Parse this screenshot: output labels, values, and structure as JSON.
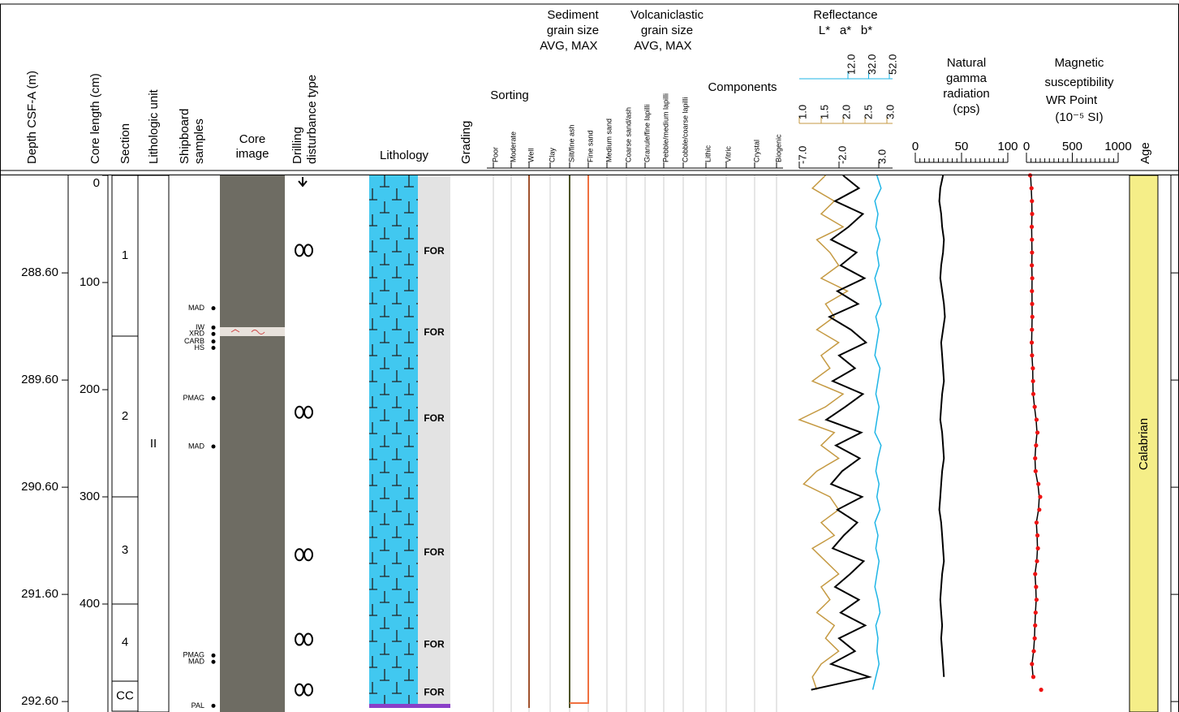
{
  "header": {
    "depth": "Depth CSF-A (m)",
    "core_length": "Core length (cm)",
    "section": "Section",
    "lith_unit": "Lithologic unit",
    "samples": [
      "Shipboard",
      "samples"
    ],
    "core_image": [
      "Core",
      "image"
    ],
    "disturbance": [
      "Drilling",
      "disturbance type"
    ],
    "lithology": "Lithology",
    "grading": "Grading",
    "sorting": "Sorting",
    "sorting_classes": [
      "Poor",
      "Moderate",
      "Well"
    ],
    "sediment_grain": {
      "title": [
        "Sediment",
        "grain size"
      ],
      "avg": "AVG,",
      "max": "MAX"
    },
    "volcaniclastic_grain": {
      "title": [
        "Volcaniclastic",
        "grain size"
      ],
      "avg": "AVG,",
      "max": "MAX"
    },
    "grain_classes": [
      "Clay",
      "Silt/fine ash",
      "Fine sand",
      "Medium sand",
      "Coarse sand/ash",
      "Granule/fine lapilli",
      "Pebble/medium lapilli",
      "Cobble/coarse lapilli"
    ],
    "components": "Components",
    "component_classes": [
      "Lithic",
      "Vitric",
      "Crystal",
      "Biogenic"
    ],
    "reflectance": "Reflectance",
    "ngr": [
      "Natural",
      "gamma",
      "radiation",
      "(cps)"
    ],
    "ms": [
      "Magnetic",
      "susceptibility"
    ],
    "ms_wr": "WR",
    "ms_point": "Point",
    "ms_unit": "(10⁻⁵ SI)",
    "age": "Age"
  },
  "depth_ticks": [
    {
      "value": 288.6,
      "label": "288.60"
    },
    {
      "value": 289.6,
      "label": "289.60"
    },
    {
      "value": 290.6,
      "label": "290.60"
    },
    {
      "value": 291.6,
      "label": "291.60"
    },
    {
      "value": 292.6,
      "label": "292.60"
    }
  ],
  "core_length_ticks": [
    0,
    100,
    200,
    300,
    400
  ],
  "sections": [
    {
      "label": "1",
      "top": 0,
      "bottom": 150
    },
    {
      "label": "2",
      "top": 150,
      "bottom": 300
    },
    {
      "label": "3",
      "top": 300,
      "bottom": 400
    },
    {
      "label": "4",
      "top": 400,
      "bottom": 472
    },
    {
      "label": "CC",
      "top": 472,
      "bottom": 500
    }
  ],
  "lith_unit": "II",
  "samples": [
    {
      "label": "MAD",
      "cm": 124
    },
    {
      "label": "IW",
      "cm": 142
    },
    {
      "label": "XRD",
      "cm": 148
    },
    {
      "label": "CARB",
      "cm": 155
    },
    {
      "label": "HS",
      "cm": 161
    },
    {
      "label": "PMAG",
      "cm": 208
    },
    {
      "label": "MAD",
      "cm": 253
    },
    {
      "label": "PMAG",
      "cm": 448
    },
    {
      "label": "MAD",
      "cm": 454
    },
    {
      "label": "PAL",
      "cm": 495
    }
  ],
  "disturbance_cm": [
    70,
    221,
    354,
    433,
    480
  ],
  "lithology_labels": [
    {
      "label": "FOR",
      "cm": 71
    },
    {
      "label": "FOR",
      "cm": 147
    },
    {
      "label": "FOR",
      "cm": 227
    },
    {
      "label": "FOR",
      "cm": 352
    },
    {
      "label": "FOR",
      "cm": 438
    },
    {
      "label": "FOR",
      "cm": 483
    }
  ],
  "reflectance": {
    "L": {
      "name": "L*",
      "color": "#1fb5e6",
      "lim": [
        12,
        52
      ],
      "ticks": [
        {
          "value": 12,
          "label": "12.0"
        },
        {
          "value": 32,
          "label": "32.0"
        },
        {
          "value": 52,
          "label": "52.0"
        }
      ],
      "values": [
        40,
        44,
        38,
        41,
        39,
        43,
        40,
        42,
        38,
        41,
        44,
        39,
        42,
        40,
        38,
        43,
        41,
        39,
        42,
        40,
        38,
        44,
        41,
        39,
        42,
        40,
        43,
        38,
        41,
        39,
        42,
        40,
        38,
        41,
        43,
        39,
        41,
        40,
        42,
        39,
        36
      ]
    },
    "a": {
      "name": "a*",
      "color": "#c59a43",
      "lim": [
        1,
        3
      ],
      "ticks": [
        {
          "value": 1,
          "label": "1.0"
        },
        {
          "value": 1.5,
          "label": "1.5"
        },
        {
          "value": 2,
          "label": "2.0"
        },
        {
          "value": 2.5,
          "label": "2.5"
        },
        {
          "value": 3,
          "label": "3.0"
        }
      ],
      "values": [
        1.6,
        1.3,
        1.8,
        1.5,
        2.0,
        1.4,
        1.7,
        1.9,
        1.5,
        2.1,
        1.6,
        1.8,
        1.4,
        1.9,
        1.5,
        1.7,
        1.3,
        2.0,
        1.6,
        1.0,
        1.8,
        1.5,
        1.9,
        1.4,
        1.1,
        1.7,
        1.9,
        1.5,
        1.8,
        1.3,
        1.6,
        1.9,
        1.5,
        1.7,
        1.4,
        1.8,
        1.6,
        1.9,
        1.5,
        1.3,
        1.4
      ]
    },
    "b": {
      "name": "b*",
      "color": "#000000",
      "lim": [
        -7,
        3
      ],
      "ticks": [
        {
          "value": -7,
          "label": "-7.0"
        },
        {
          "value": -2,
          "label": "-2.0"
        },
        {
          "value": 3,
          "label": "3.0"
        }
      ],
      "values": [
        -1.5,
        0.5,
        -2.5,
        1.0,
        -0.8,
        -3.0,
        0.2,
        -1.8,
        1.2,
        -2.2,
        0.4,
        -3.2,
        -0.5,
        1.4,
        -2.0,
        0.0,
        -2.8,
        1.0,
        -1.2,
        -3.6,
        0.8,
        -2.4,
        0.6,
        -1.6,
        -3.0,
        0.9,
        -2.2,
        0.3,
        -1.4,
        -2.8,
        1.1,
        -0.6,
        -2.5,
        0.5,
        -1.8,
        1.3,
        -2.0,
        0.0,
        -3.0,
        1.8,
        -5.5
      ]
    }
  },
  "cm": [
    0,
    12,
    24,
    36,
    48,
    60,
    72,
    84,
    96,
    108,
    120,
    132,
    144,
    156,
    168,
    180,
    192,
    204,
    216,
    228,
    240,
    252,
    264,
    276,
    288,
    300,
    312,
    324,
    336,
    348,
    360,
    372,
    384,
    396,
    408,
    420,
    432,
    444,
    456,
    468,
    480
  ],
  "ngr": {
    "lim": [
      0,
      100
    ],
    "ticks": [
      0,
      50,
      100
    ],
    "values": [
      30,
      27,
      26,
      28,
      29,
      31,
      30,
      28,
      27,
      29,
      31,
      32,
      30,
      28,
      29,
      30,
      31,
      29,
      28,
      27,
      29,
      30,
      31,
      29,
      28,
      27,
      26,
      28,
      29,
      30,
      31,
      29,
      28,
      27,
      28,
      29,
      28,
      29,
      30,
      31,
      null
    ]
  },
  "ms": {
    "lim": [
      0,
      1000
    ],
    "ticks": [
      0,
      500,
      1000
    ],
    "point_color": "#ee1111",
    "point": [
      40,
      55,
      60,
      62,
      58,
      60,
      61,
      59,
      63,
      60,
      62,
      64,
      60,
      58,
      61,
      70,
      72,
      75,
      90,
      110,
      120,
      105,
      95,
      100,
      130,
      150,
      140,
      110,
      120,
      125,
      115,
      95,
      105,
      110,
      100,
      95,
      90,
      80,
      60,
      75,
      160
    ],
    "wr": [
      45,
      52,
      58,
      60,
      57,
      58,
      60,
      58,
      61,
      60,
      61,
      62,
      59,
      57,
      60,
      68,
      70,
      73,
      88,
      105,
      115,
      102,
      93,
      98,
      125,
      140,
      132,
      108,
      116,
      120,
      112,
      93,
      102,
      106,
      98,
      92,
      88,
      78,
      60,
      72,
      null
    ]
  },
  "age": "Calabrian"
}
